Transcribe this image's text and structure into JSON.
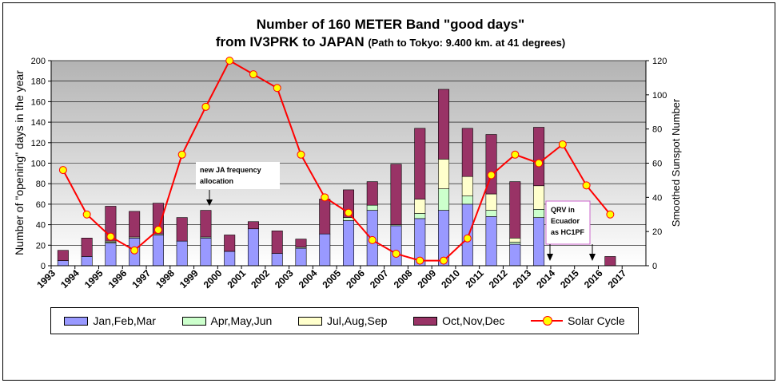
{
  "title_line1": "Number of 160 METER Band \"good days\"",
  "title_line2": "from IV3PRK to JAPAN",
  "title_note": "(Path to Tokyo: 9.400 km. at 41 degrees)",
  "colors": {
    "jan": "#9999ff",
    "apr": "#ccffcc",
    "jul": "#ffffcc",
    "oct": "#993366",
    "solar": "#ff0000",
    "marker": "#ffff00"
  },
  "annotations": {
    "ja_freq_1": "new JA frequency",
    "ja_freq_2": "allocation",
    "qrv_1": "QRV in",
    "qrv_2": "Ecuador",
    "qrv_3": "as HC1PF"
  },
  "chart_data": {
    "type": "bar",
    "stacked": true,
    "categories": [
      "1993",
      "1994",
      "1995",
      "1996",
      "1997",
      "1998",
      "1999",
      "2000",
      "2001",
      "2002",
      "2003",
      "2004",
      "2005",
      "2006",
      "2007",
      "2008",
      "2009",
      "2010",
      "2011",
      "2012",
      "2013",
      "2014",
      "2015",
      "2016",
      "2017"
    ],
    "series": [
      {
        "name": "Jan,Feb,Mar",
        "values": [
          5,
          9,
          22,
          27,
          30,
          24,
          27,
          14,
          36,
          12,
          17,
          31,
          44,
          54,
          39,
          46,
          54,
          60,
          48,
          21,
          47,
          0,
          0,
          0,
          0
        ]
      },
      {
        "name": "Apr,May,Jun",
        "values": [
          0,
          0,
          1,
          0,
          0,
          0,
          1,
          0,
          0,
          0,
          1,
          0,
          3,
          5,
          1,
          5,
          21,
          8,
          6,
          2,
          8,
          0,
          0,
          0,
          0
        ]
      },
      {
        "name": "Jul,Aug,Sep",
        "values": [
          0,
          0,
          1,
          1,
          1,
          0,
          0,
          0,
          0,
          0,
          0,
          0,
          0,
          0,
          0,
          14,
          29,
          19,
          16,
          4,
          23,
          0,
          0,
          0,
          0
        ]
      },
      {
        "name": "Oct,Nov,Dec",
        "values": [
          10,
          18,
          34,
          25,
          30,
          23,
          26,
          16,
          7,
          22,
          8,
          34,
          27,
          23,
          59,
          69,
          68,
          47,
          58,
          55,
          57,
          0,
          0,
          9,
          0
        ]
      }
    ],
    "line_series": {
      "name": "Solar Cycle",
      "axis": "right",
      "values": [
        56,
        30,
        17,
        9,
        21,
        65,
        93,
        120,
        112,
        104,
        65,
        40,
        31,
        15,
        7,
        3,
        3,
        16,
        53,
        65,
        60,
        71,
        47,
        30,
        null
      ]
    },
    "ylabel": "Number of \"opening\" days in the year",
    "y2label": "Smoothed Sunspot Number",
    "ylim": [
      0,
      200
    ],
    "y2lim": [
      0,
      120
    ],
    "yticks": [
      "0",
      "20",
      "40",
      "60",
      "80",
      "100",
      "120",
      "140",
      "160",
      "180",
      "200"
    ],
    "y2ticks": [
      "0",
      "20",
      "40",
      "60",
      "80",
      "100",
      "120"
    ],
    "legend_position": "bottom"
  }
}
